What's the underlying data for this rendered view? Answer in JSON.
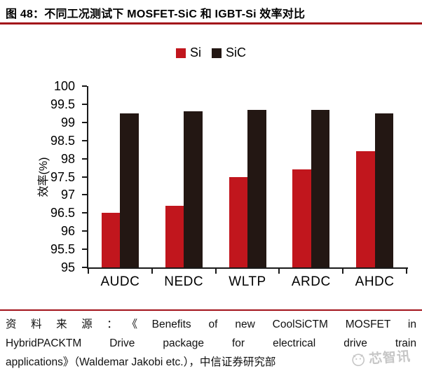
{
  "figure": {
    "title": "图 48：不同工况测试下 MOSFET-SiC 和 IGBT-Si 效率对比"
  },
  "legend": {
    "items": [
      {
        "label": "Si",
        "color": "#C1161D"
      },
      {
        "label": "SiC",
        "color": "#231713"
      }
    ]
  },
  "chart_data": {
    "type": "bar",
    "categories": [
      "AUDC",
      "NEDC",
      "WLTP",
      "ARDC",
      "AHDC"
    ],
    "series": [
      {
        "name": "Si",
        "color": "#C1161D",
        "values": [
          96.5,
          96.7,
          97.5,
          97.7,
          98.2
        ]
      },
      {
        "name": "SiC",
        "color": "#231713",
        "values": [
          99.25,
          99.3,
          99.35,
          99.35,
          99.25
        ]
      }
    ],
    "xlabel": "",
    "ylabel": "效率(%)",
    "ylim": [
      95,
      100
    ],
    "yticks": [
      95,
      95.5,
      96,
      96.5,
      97,
      97.5,
      98,
      98.5,
      99,
      99.5,
      100
    ],
    "ytick_labels": [
      "95",
      "95.5",
      "96",
      "96.5",
      "97",
      "97.5",
      "98",
      "98.5",
      "99",
      "99.5",
      "100"
    ],
    "grid": false,
    "legend_position": "top-center"
  },
  "source": {
    "lines": [
      "资料来源：《Benefits of new CoolSiCTM MOSFET in",
      "HybridPACKTM Drive package for electrical drive train",
      "applications》（Waldemar Jakobi etc.），中信证券研究部"
    ],
    "full_text": "资料来源：《Benefits of new CoolSiCTM MOSFET in HybridPACKTM Drive package for electrical drive train applications》（Waldemar Jakobi etc.），中信证券研究部"
  },
  "watermark": {
    "text": "芯智讯"
  },
  "colors": {
    "accent_red": "#C1161D",
    "bar_black": "#231713",
    "rule_red": "#A2121A",
    "axis_black": "#1A1A1A",
    "watermark_gray": "#B9B9B9"
  }
}
